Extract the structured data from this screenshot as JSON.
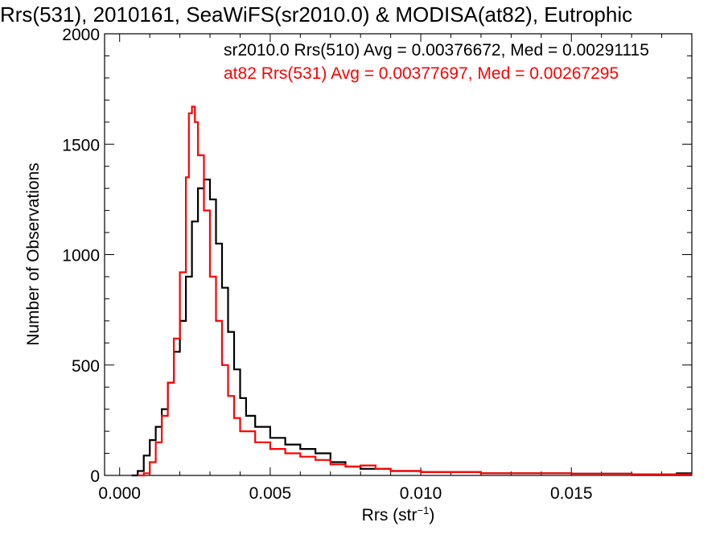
{
  "chart_data": {
    "type": "line",
    "title": "Rrs(531), 2010161, SeaWiFS(sr2010.0) & MODISA(at82), Eutrophic",
    "xlabel_main": "Rrs (str",
    "xlabel_sup": "−1",
    "xlabel_end": ")",
    "ylabel": "Number of Observations",
    "xlim": [
      -0.0005,
      0.019
    ],
    "ylim": [
      0,
      2000
    ],
    "x_ticks": [
      0.0,
      0.005,
      0.01,
      0.015
    ],
    "x_tick_labels": [
      "0.000",
      "0.005",
      "0.010",
      "0.015"
    ],
    "y_ticks": [
      0,
      500,
      1000,
      1500,
      2000
    ],
    "y_tick_labels": [
      "0",
      "500",
      "1000",
      "1500",
      "2000"
    ],
    "grid": false,
    "legend_placement": "top-right",
    "series": [
      {
        "name": "sr2010.0 Rrs(510) Avg = 0.00376672, Med = 0.00291115",
        "color": "#000000",
        "points": [
          [
            0.0004,
            0
          ],
          [
            0.0006,
            20
          ],
          [
            0.0008,
            90
          ],
          [
            0.001,
            160
          ],
          [
            0.0012,
            220
          ],
          [
            0.0014,
            300
          ],
          [
            0.0016,
            420
          ],
          [
            0.0018,
            560
          ],
          [
            0.002,
            700
          ],
          [
            0.0022,
            900
          ],
          [
            0.0024,
            1150
          ],
          [
            0.0026,
            1300
          ],
          [
            0.0028,
            1340
          ],
          [
            0.003,
            1250
          ],
          [
            0.0032,
            1050
          ],
          [
            0.0034,
            850
          ],
          [
            0.0036,
            650
          ],
          [
            0.0038,
            480
          ],
          [
            0.004,
            350
          ],
          [
            0.0042,
            270
          ],
          [
            0.0045,
            220
          ],
          [
            0.005,
            170
          ],
          [
            0.0055,
            140
          ],
          [
            0.006,
            120
          ],
          [
            0.0063,
            120
          ],
          [
            0.0065,
            100
          ],
          [
            0.007,
            60
          ],
          [
            0.0075,
            40
          ],
          [
            0.008,
            30
          ],
          [
            0.009,
            20
          ],
          [
            0.01,
            15
          ],
          [
            0.012,
            10
          ],
          [
            0.015,
            8
          ],
          [
            0.017,
            5
          ],
          [
            0.0185,
            10
          ],
          [
            0.019,
            10
          ]
        ]
      },
      {
        "name": "at82 Rrs(531) Avg = 0.00377697, Med = 0.00267295",
        "color": "#ff0000",
        "points": [
          [
            0.0006,
            0
          ],
          [
            0.0008,
            10
          ],
          [
            0.001,
            60
          ],
          [
            0.0012,
            150
          ],
          [
            0.0014,
            270
          ],
          [
            0.0016,
            420
          ],
          [
            0.0018,
            620
          ],
          [
            0.002,
            920
          ],
          [
            0.0022,
            1350
          ],
          [
            0.0023,
            1640
          ],
          [
            0.0024,
            1670
          ],
          [
            0.0025,
            1600
          ],
          [
            0.0026,
            1450
          ],
          [
            0.0028,
            1200
          ],
          [
            0.003,
            900
          ],
          [
            0.0032,
            700
          ],
          [
            0.0034,
            500
          ],
          [
            0.0036,
            360
          ],
          [
            0.0038,
            260
          ],
          [
            0.004,
            200
          ],
          [
            0.0045,
            150
          ],
          [
            0.005,
            120
          ],
          [
            0.0055,
            100
          ],
          [
            0.006,
            85
          ],
          [
            0.0065,
            70
          ],
          [
            0.007,
            50
          ],
          [
            0.0075,
            40
          ],
          [
            0.008,
            45
          ],
          [
            0.0085,
            30
          ],
          [
            0.009,
            20
          ],
          [
            0.01,
            15
          ],
          [
            0.012,
            10
          ],
          [
            0.015,
            8
          ],
          [
            0.017,
            5
          ],
          [
            0.019,
            5
          ]
        ]
      }
    ]
  }
}
